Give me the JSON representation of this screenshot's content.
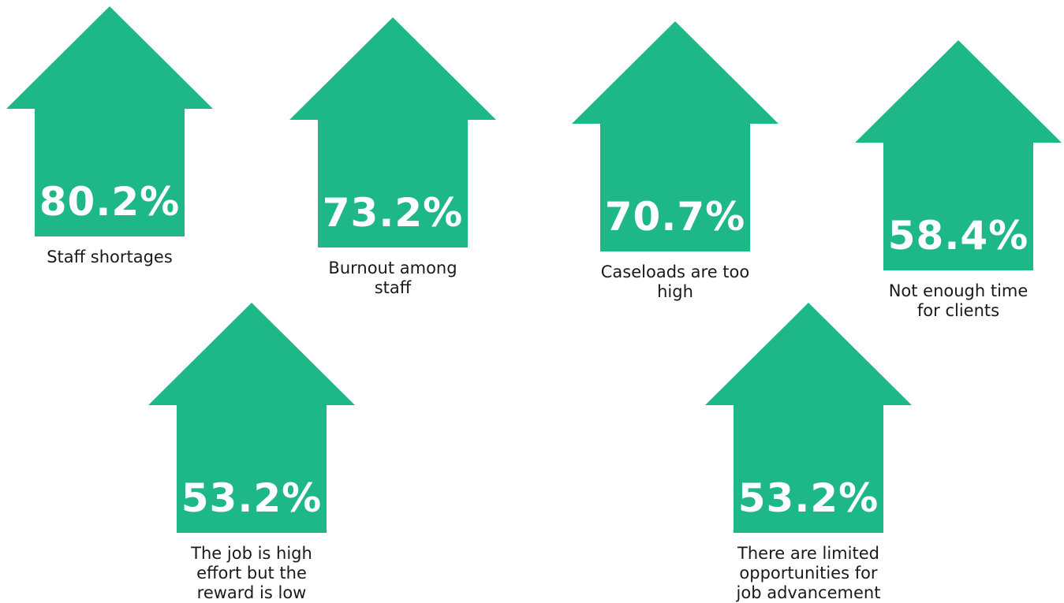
{
  "chart_data": {
    "type": "bar",
    "categories": [
      "Staff shortages",
      "Burnout among staff",
      "Caseloads are too high",
      "Not enough time for clients",
      "The job is high effort but the reward is low",
      "There are limited opportunities for job advancement"
    ],
    "values": [
      80.2,
      73.2,
      70.7,
      58.4,
      53.2,
      53.2
    ],
    "value_labels": [
      "80.2%",
      "73.2%",
      "70.7%",
      "58.4%",
      "53.2%",
      "53.2%"
    ],
    "unit": "%",
    "colors": {
      "arrow": "#1eb787",
      "value_text": "#ffffff",
      "label_text": "#1a1a1a",
      "background": "#ffffff"
    }
  }
}
